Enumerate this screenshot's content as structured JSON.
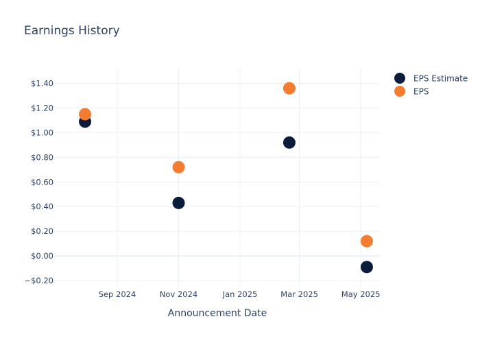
{
  "chart_data": {
    "type": "scatter",
    "title": "Earnings History",
    "xlabel": "Announcement Date",
    "ylabel": "",
    "x_ticks": [
      {
        "date": "2024-09-01",
        "label": "Sep 2024"
      },
      {
        "date": "2024-11-01",
        "label": "Nov 2024"
      },
      {
        "date": "2025-01-01",
        "label": "Jan 2025"
      },
      {
        "date": "2025-03-01",
        "label": "Mar 2025"
      },
      {
        "date": "2025-05-01",
        "label": "May 2025"
      }
    ],
    "y_ticks": [
      {
        "value": -0.2,
        "label": "−$0.20"
      },
      {
        "value": 0.0,
        "label": "$0.00"
      },
      {
        "value": 0.2,
        "label": "$0.20"
      },
      {
        "value": 0.4,
        "label": "$0.40"
      },
      {
        "value": 0.6,
        "label": "$0.60"
      },
      {
        "value": 0.8,
        "label": "$0.80"
      },
      {
        "value": 1.0,
        "label": "$1.00"
      },
      {
        "value": 1.2,
        "label": "$1.20"
      },
      {
        "value": 1.4,
        "label": "$1.40"
      }
    ],
    "xlim": [
      "2024-07-01",
      "2025-05-20"
    ],
    "ylim": [
      -0.25,
      1.52
    ],
    "grid": true,
    "legend_position": "top-right",
    "series": [
      {
        "name": "EPS Estimate",
        "color": "#0b1d3a",
        "points": [
          {
            "x": "2024-07-31",
            "y": 1.09
          },
          {
            "x": "2024-11-01",
            "y": 0.43
          },
          {
            "x": "2025-02-19",
            "y": 0.92
          },
          {
            "x": "2025-05-07",
            "y": -0.09
          }
        ]
      },
      {
        "name": "EPS",
        "color": "#f47c30",
        "points": [
          {
            "x": "2024-07-31",
            "y": 1.15
          },
          {
            "x": "2024-11-01",
            "y": 0.72
          },
          {
            "x": "2025-02-19",
            "y": 1.36
          },
          {
            "x": "2025-05-07",
            "y": 0.12
          }
        ]
      }
    ]
  }
}
